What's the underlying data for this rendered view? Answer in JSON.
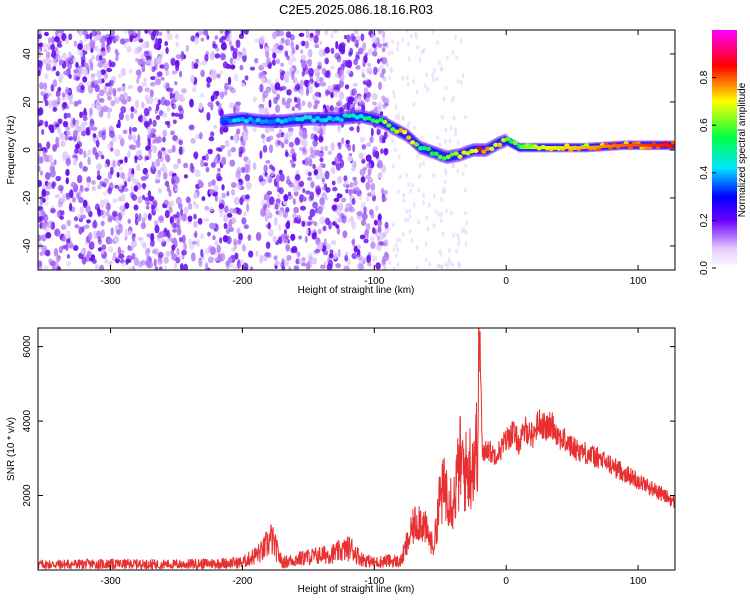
{
  "title": "C2E5.2025.086.18.16.R03",
  "chart_data": [
    {
      "type": "heatmap",
      "xlabel": "Height of straight line (km)",
      "ylabel": "Frequency (Hz)",
      "xlim": [
        -355,
        128
      ],
      "ylim": [
        -50,
        50
      ],
      "xticks": [
        -300,
        -200,
        -100,
        0,
        100
      ],
      "yticks": [
        -40,
        -20,
        0,
        20,
        40
      ],
      "colorbar": {
        "label": "Normalized spectral amplitude",
        "range": [
          0,
          1
        ],
        "ticks": [
          0.0,
          0.2,
          0.4,
          0.6,
          0.8
        ]
      },
      "ridge": {
        "x": [
          -215,
          -200,
          -185,
          -170,
          -150,
          -130,
          -110,
          -95,
          -85,
          -75,
          -65,
          -55,
          -45,
          -35,
          -25,
          -15,
          -5,
          0,
          10,
          30,
          60,
          90,
          128
        ],
        "freq": [
          12,
          13,
          12,
          12,
          13,
          13,
          14,
          12,
          9,
          6,
          1,
          -1,
          -3,
          -2,
          0,
          0,
          3,
          4,
          1,
          1,
          1,
          2,
          2
        ],
        "amp": [
          0.4,
          0.45,
          0.4,
          0.4,
          0.45,
          0.45,
          0.5,
          0.6,
          0.7,
          0.75,
          0.6,
          0.55,
          0.6,
          0.65,
          0.8,
          0.85,
          0.7,
          0.6,
          0.6,
          0.7,
          0.75,
          0.8,
          0.85
        ]
      },
      "noise_region_x": [
        -355,
        -90
      ]
    },
    {
      "type": "line",
      "xlabel": "Height of straight line (km)",
      "ylabel": "SNR (10 * v/v)",
      "xlim": [
        -355,
        128
      ],
      "ylim": [
        0,
        6500
      ],
      "xticks": [
        -300,
        -200,
        -100,
        0,
        100
      ],
      "yticks": [
        2000,
        4000,
        6000
      ],
      "color": "#e83030",
      "series": [
        {
          "x": [
            -355,
            -300,
            -250,
            -200,
            -185,
            -178,
            -170,
            -150,
            -130,
            -118,
            -110,
            -100,
            -90,
            -80,
            -70,
            -65,
            -60,
            -55,
            -50,
            -45,
            -40,
            -35,
            -30,
            -25,
            -22,
            -20,
            -18,
            -15,
            -10,
            -5,
            0,
            5,
            10,
            15,
            20,
            25,
            30,
            35,
            40,
            50,
            60,
            70,
            80,
            90,
            100,
            110,
            120,
            128
          ],
          "y": [
            150,
            160,
            150,
            200,
            500,
            850,
            200,
            350,
            450,
            600,
            300,
            200,
            250,
            220,
            1200,
            1400,
            1000,
            600,
            2000,
            2200,
            1800,
            2900,
            2600,
            3000,
            3300,
            6400,
            3000,
            3300,
            3100,
            3200,
            3500,
            3700,
            3400,
            3800,
            3600,
            4000,
            3800,
            3900,
            3600,
            3300,
            3150,
            3000,
            2800,
            2600,
            2400,
            2200,
            2000,
            1800
          ]
        }
      ]
    }
  ]
}
